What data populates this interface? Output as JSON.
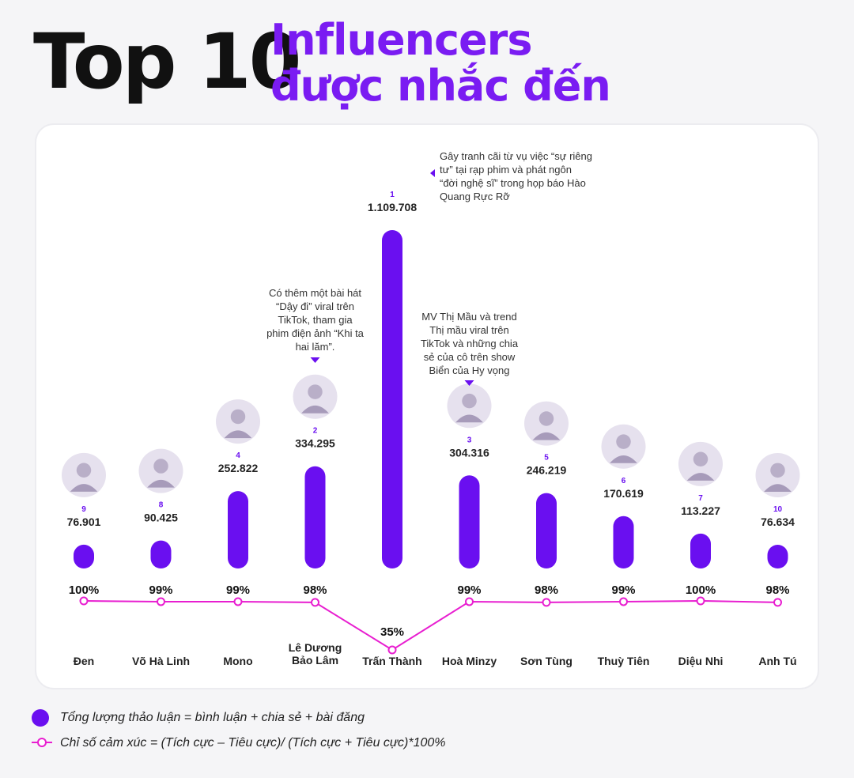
{
  "title": {
    "line1": "Top 10",
    "line2a": "Influencers",
    "line2b": "được nhắc đến"
  },
  "chart_data": {
    "type": "bar",
    "categories": [
      "Đen",
      "Võ Hà Linh",
      "Mono",
      "Lê Dương Bảo Lâm",
      "Trấn Thành",
      "Hoà Minzy",
      "Sơn Tùng",
      "Thuỳ Tiên",
      "Diệu Nhi",
      "Anh Tú"
    ],
    "category_lines": [
      [
        "Đen"
      ],
      [
        "Võ Hà Linh"
      ],
      [
        "Mono"
      ],
      [
        "Lê Dương",
        "Bảo Lâm"
      ],
      [
        "Trấn Thành"
      ],
      [
        "Hoà Minzy"
      ],
      [
        "Sơn Tùng"
      ],
      [
        "Thuỳ Tiên"
      ],
      [
        "Diệu Nhi"
      ],
      [
        "Anh Tú"
      ]
    ],
    "series": [
      {
        "values": [
          76901,
          90425,
          252822,
          334295,
          1109708,
          304316,
          246219,
          170619,
          113227,
          76634
        ],
        "value_labels": [
          "76.901",
          "90.425",
          "252.822",
          "334.295",
          "1.109.708",
          "304.316",
          "246.219",
          "170.619",
          "113.227",
          "76.634"
        ],
        "color": "#6a0ff0"
      },
      {
        "type": "line",
        "values": [
          100,
          99,
          99,
          98,
          35,
          99,
          98,
          99,
          100,
          98
        ],
        "value_labels": [
          "100%",
          "99%",
          "99%",
          "98%",
          "35%",
          "99%",
          "98%",
          "99%",
          "100%",
          "98%"
        ],
        "color": "#e81ed0"
      }
    ],
    "ranks": [
      "9",
      "8",
      "4",
      "2",
      "1",
      "3",
      "5",
      "6",
      "7",
      "10"
    ],
    "annotations": [
      {
        "category": "Trấn Thành",
        "lines": [
          "Gây tranh cãi từ vụ việc “sự riêng",
          "tư” tại rạp phim và phát ngôn",
          "“đời nghệ sĩ” trong họp báo Hào",
          "Quang Rực Rỡ"
        ]
      },
      {
        "category": "Lê Dương Bảo Lâm",
        "lines": [
          "Có thêm một bài hát",
          "“Dậy đi” viral trên",
          "TikTok, tham gia",
          "phim điện ảnh “Khi ta",
          "hai lăm”."
        ]
      },
      {
        "category": "Hoà Minzy",
        "lines": [
          "MV Thị Mầu và trend",
          "Thị mầu viral trên",
          "TikTok và những chia",
          "sẻ của cô trên show",
          "Biển của Hy vọng"
        ]
      }
    ]
  },
  "legend": {
    "bar": "Tổng lượng thảo luận = bình luận + chia sẻ + bài đăng",
    "line": "Chỉ số cảm xúc = (Tích cực – Tiêu cực)/ (Tích cực + Tiêu cực)*100%"
  },
  "colors": {
    "accent": "#7a1cf2",
    "bar": "#6a0ff0",
    "line": "#e81ed0"
  }
}
